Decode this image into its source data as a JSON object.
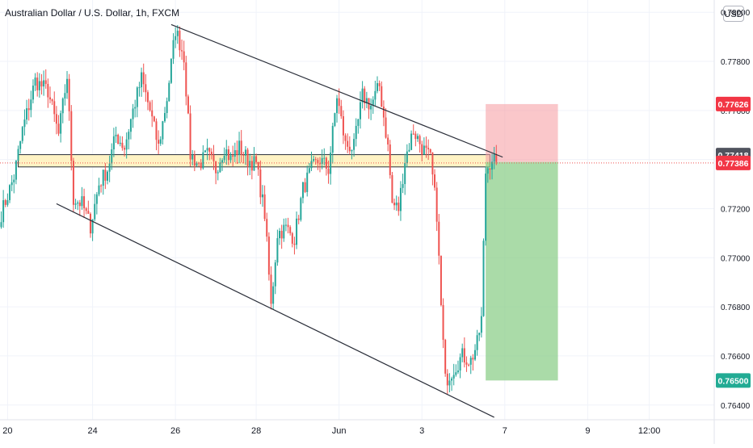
{
  "header": {
    "symbol": "Australian Dollar / U.S. Dollar, 1h, FXCM",
    "currency": "USD"
  },
  "chart_data": {
    "type": "candlestick",
    "ylim": [
      0.7634,
      0.7805
    ],
    "y_ticks": [
      "0.78000",
      "0.77800",
      "0.77600",
      "0.77400",
      "0.77200",
      "0.77000",
      "0.76800",
      "0.76600",
      "0.76400"
    ],
    "x_ticks": [
      "20",
      "24",
      "26",
      "28",
      "Jun",
      "3",
      "7",
      "9",
      "12:00"
    ],
    "price_labels": [
      {
        "value": 0.77626,
        "text": "0.77626",
        "color": "#f23645"
      },
      {
        "value": 0.77418,
        "text": "0.77418",
        "color": "#50535e"
      },
      {
        "value": 0.77386,
        "text": "0.77386",
        "color": "#f23645"
      },
      {
        "value": 0.765,
        "text": "0.76500",
        "color": "#22ab94"
      }
    ],
    "colors": {
      "up": "#26a69a",
      "down": "#ef5350",
      "grid": "#f0f3fa",
      "zone_fill": "#fff3c4",
      "stop_fill": "#f7a1a6",
      "target_fill": "#8ecf8b",
      "trendline": "#2a2e39",
      "last_price_line": "#ef5350"
    },
    "drawings": {
      "resistance_zone": {
        "top": 0.7742,
        "bottom": 0.7737
      },
      "upper_trendline": {
        "from": {
          "candle": 80,
          "price": 0.7795
        },
        "to": {
          "candle": 236,
          "price": 0.7741
        }
      },
      "lower_trendline": {
        "from": {
          "candle": 26,
          "price": 0.7722
        },
        "to": {
          "candle": 232,
          "price": 0.7635
        }
      },
      "short_position": {
        "entry": 0.7739,
        "stop": 0.77626,
        "target": 0.765,
        "from_candle": 228,
        "to_candle": 262
      }
    },
    "waypoints": [
      [
        0,
        0.7718
      ],
      [
        6,
        0.7733
      ],
      [
        10,
        0.7752
      ],
      [
        16,
        0.7772
      ],
      [
        22,
        0.7768
      ],
      [
        27,
        0.775
      ],
      [
        31,
        0.7774
      ],
      [
        34,
        0.7724
      ],
      [
        38,
        0.7722
      ],
      [
        42,
        0.7713
      ],
      [
        46,
        0.773
      ],
      [
        50,
        0.7736
      ],
      [
        54,
        0.775
      ],
      [
        58,
        0.7745
      ],
      [
        62,
        0.776
      ],
      [
        66,
        0.7773
      ],
      [
        70,
        0.776
      ],
      [
        74,
        0.7745
      ],
      [
        78,
        0.7765
      ],
      [
        82,
        0.7793
      ],
      [
        86,
        0.7782
      ],
      [
        89,
        0.7742
      ],
      [
        93,
        0.7738
      ],
      [
        97,
        0.7742
      ],
      [
        101,
        0.7736
      ],
      [
        105,
        0.7745
      ],
      [
        108,
        0.774
      ],
      [
        112,
        0.7745
      ],
      [
        116,
        0.774
      ],
      [
        120,
        0.7738
      ],
      [
        124,
        0.7718
      ],
      [
        127,
        0.768
      ],
      [
        130,
        0.771
      ],
      [
        134,
        0.7712
      ],
      [
        138,
        0.7708
      ],
      [
        142,
        0.7728
      ],
      [
        146,
        0.7736
      ],
      [
        150,
        0.774
      ],
      [
        154,
        0.7736
      ],
      [
        158,
        0.7766
      ],
      [
        162,
        0.7746
      ],
      [
        166,
        0.7745
      ],
      [
        170,
        0.7766
      ],
      [
        174,
        0.7762
      ],
      [
        178,
        0.777
      ],
      [
        182,
        0.7745
      ],
      [
        184,
        0.7722
      ],
      [
        187,
        0.772
      ],
      [
        190,
        0.774
      ],
      [
        194,
        0.7752
      ],
      [
        198,
        0.7745
      ],
      [
        202,
        0.774
      ],
      [
        205,
        0.7718
      ],
      [
        207,
        0.768
      ],
      [
        209,
        0.765
      ],
      [
        213,
        0.7655
      ],
      [
        217,
        0.766
      ],
      [
        221,
        0.7658
      ],
      [
        224,
        0.7665
      ],
      [
        226,
        0.7675
      ],
      [
        228,
        0.7735
      ],
      [
        231,
        0.7741
      ],
      [
        233,
        0.7739
      ]
    ]
  }
}
